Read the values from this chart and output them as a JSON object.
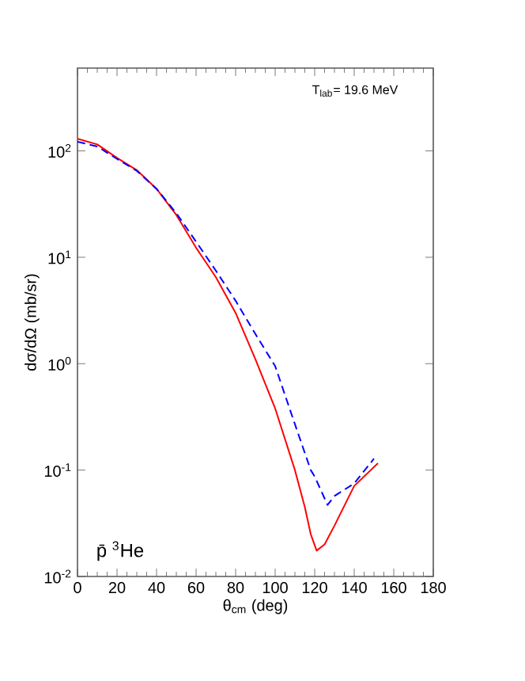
{
  "chart_data": {
    "type": "line",
    "xlabel": "θ$_{cm}$ (deg)",
    "ylabel": "dσ/dΩ (mb/sr)",
    "annotations": [
      "T$_{lab}$= 19.6 MeV",
      "p̄ $^{3}$He"
    ],
    "log": "y",
    "xlim": [
      0,
      180
    ],
    "xticks": [
      0,
      20,
      40,
      60,
      80,
      100,
      120,
      140,
      160,
      180
    ],
    "ylim": [
      0.01,
      600
    ],
    "yticks": [
      {
        "value": 0.01,
        "label": "10$^{-2}$"
      },
      {
        "value": 0.1,
        "label": "10$^{-1}$"
      },
      {
        "value": 1,
        "label": "10$^{0}$"
      },
      {
        "value": 10,
        "label": "10$^{1}$"
      },
      {
        "value": 100,
        "label": "10$^{2}$"
      }
    ],
    "series": [
      {
        "color": "#ff0000",
        "line_style": "solid",
        "x": [
          0,
          10,
          20,
          30,
          40,
          50,
          60,
          70,
          80,
          90,
          100,
          110,
          115,
          118,
          121,
          125,
          130,
          140,
          152
        ],
        "values": [
          130,
          115,
          86,
          66,
          44,
          25,
          12.3,
          6.5,
          3.0,
          1.1,
          0.38,
          0.1,
          0.045,
          0.025,
          0.0175,
          0.02,
          0.03,
          0.071,
          0.116
        ]
      },
      {
        "color": "#0000ff",
        "line_style": "dashed",
        "x": [
          0,
          10,
          20,
          30,
          40,
          50,
          60,
          70,
          80,
          90,
          100,
          110,
          118,
          120,
          126.5,
          130,
          140,
          150
        ],
        "values": [
          122,
          110,
          84,
          65,
          44,
          26,
          14,
          7.5,
          3.9,
          1.9,
          0.95,
          0.27,
          0.1,
          0.087,
          0.047,
          0.057,
          0.075,
          0.128
        ]
      }
    ]
  }
}
